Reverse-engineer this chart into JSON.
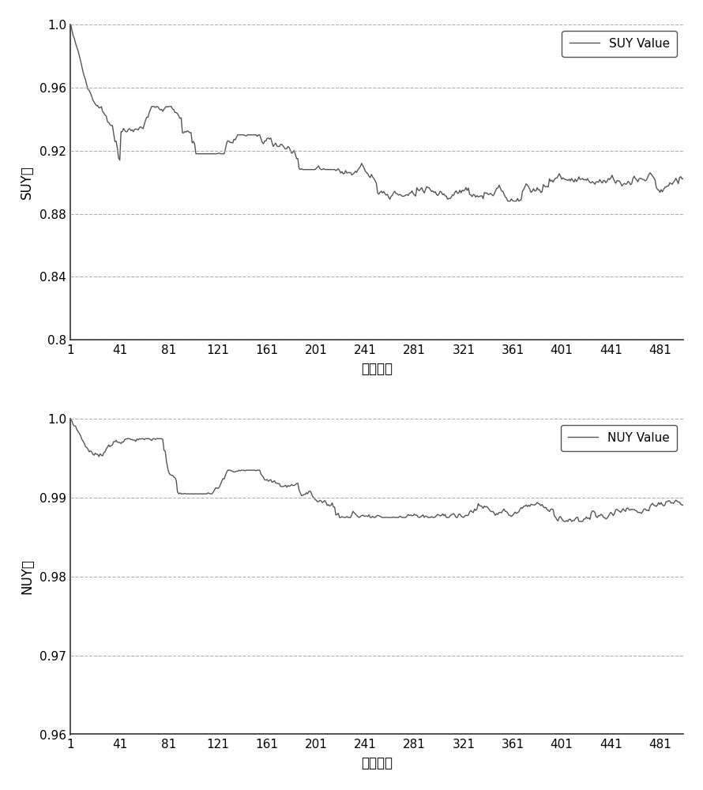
{
  "n_iterations": 500,
  "suy_ylim": [
    0.8,
    1.0
  ],
  "suy_yticks": [
    0.8,
    0.84,
    0.88,
    0.92,
    0.96,
    1.0
  ],
  "nuy_ylim": [
    0.96,
    1.0
  ],
  "nuy_yticks": [
    0.96,
    0.97,
    0.98,
    0.99,
    1.0
  ],
  "xticks": [
    1,
    41,
    81,
    121,
    161,
    201,
    241,
    281,
    321,
    361,
    401,
    441,
    481
  ],
  "xlabel": "迭代次数",
  "suy_ylabel": "SUY值",
  "nuy_ylabel": "NUY值",
  "suy_legend": "SUY Value",
  "nuy_legend": "NUY Value",
  "line_color": "#555555",
  "grid_color": "#b0b0b0",
  "background_color": "#ffffff",
  "line_width": 1.0
}
